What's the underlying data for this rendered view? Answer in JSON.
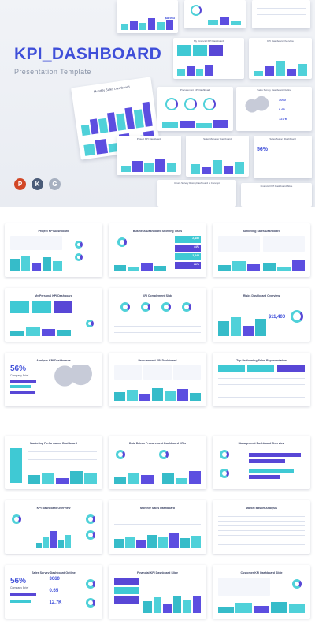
{
  "hero": {
    "title": "KPI_DASHBOARD",
    "subtitle": "Presentation Template",
    "app_icons": [
      "P",
      "K",
      "G"
    ]
  },
  "previews": [
    "Monthly Sales Dashboard",
    "My Financial KPI Dashboard",
    "KPI Dashboard Overview",
    "Sales Survey Dashboard Outline",
    "Sales Manager Dashboard",
    "Sales Survey Dashboard",
    "Project KPI Dashboard",
    "Procurement KPI Dashboard",
    "Churn Survey Rising Dashboard & Concept",
    "Financial KPI Dashboard Slide"
  ],
  "preview_stats": [
    "$8,953",
    "56%",
    "3060",
    "0.65",
    "12.7K"
  ],
  "slides_group1": [
    "Project KPI Dashboard",
    "Business Dashboard Showing Visits",
    "Achieving Sales Dashboard",
    "My Personal KPI Dashboard",
    "KPI Complement Slide",
    "Risks Dashboard Overview",
    "Analysis KPI Dashboards",
    "Procurement KPI Dashboard",
    "Top Performing Sales Representative"
  ],
  "slides_group2": [
    "Marketing Performance Dashboard",
    "Data Driven Procurement Dashboard KPIs",
    "Management Dashboard Overview",
    "KPI Dashboard Overview",
    "Monthly Sales Dashboard",
    "Market Basket Analysis",
    "Sales Survey Dashboard Outline",
    "Financial KPI Dashboard Slide",
    "Customer KPI Dashboard Slide"
  ],
  "slide_stats": {
    "risks": "$11,400",
    "analysis": "56%",
    "analysis_caption": "Company Brief",
    "survey_pct": "56%",
    "survey_caption": "Company Brief",
    "survey_a": "3060",
    "survey_b": "0.65",
    "survey_c": "12.7K",
    "visits_a": "2,450",
    "visits_b": "44%",
    "visits_c": "2,442",
    "visits_d": "66%"
  },
  "colors": {
    "accent": "#3f4fd9",
    "teal": "#4fd1d9",
    "violet": "#5847d6"
  }
}
